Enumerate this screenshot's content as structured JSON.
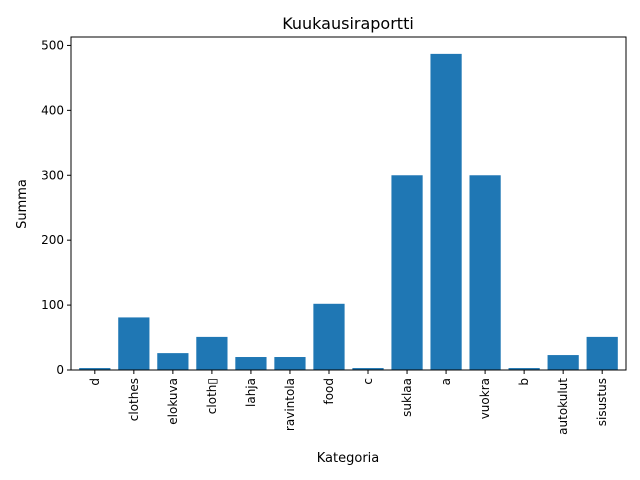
{
  "chart_data": {
    "type": "bar",
    "title": "Kuukausiraportti",
    "xlabel": "Kategoria",
    "ylabel": "Summa",
    "categories": [
      "d",
      "clothes",
      "elokuva",
      "cloth▯",
      "lahja",
      "ravintola",
      "food",
      "c",
      "suklaa",
      "a",
      "vuokra",
      "b",
      "autokulut",
      "sisustus"
    ],
    "values": [
      3,
      81,
      26,
      51,
      20,
      20,
      102,
      3,
      300,
      487,
      300,
      3,
      23,
      51
    ],
    "ylim": [
      0,
      513
    ],
    "yticks": [
      0,
      100,
      200,
      300,
      400,
      500
    ],
    "grid": false,
    "colors": {
      "bar": "#1f77b4",
      "axis": "#000000"
    }
  }
}
